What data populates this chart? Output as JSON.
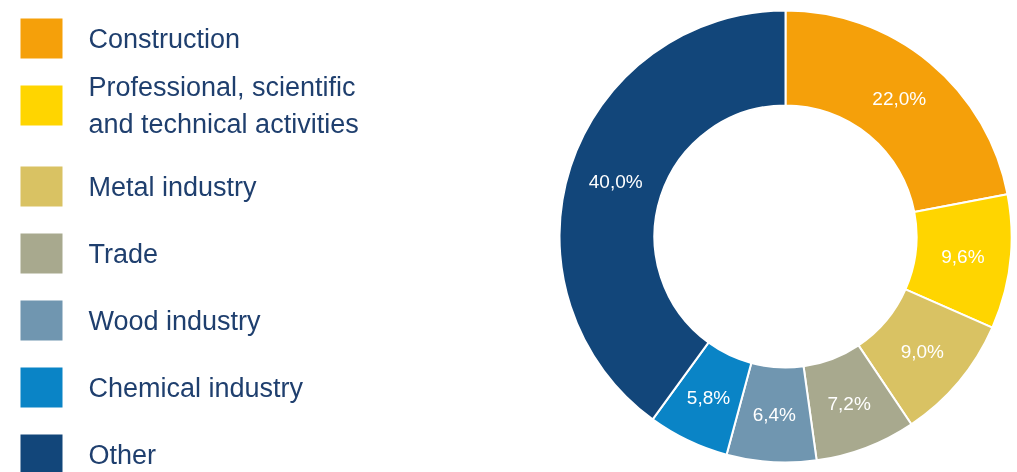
{
  "chart_data": {
    "type": "donut",
    "categories": [
      "Construction",
      "Professional, scientific and technical activities",
      "Metal industry",
      "Trade",
      "Wood industry",
      "Chemical industry",
      "Other"
    ],
    "values": [
      22.0,
      9.6,
      9.0,
      7.2,
      6.4,
      5.8,
      40.0
    ],
    "colors": [
      "#f5a00a",
      "#ffd500",
      "#d9c263",
      "#a8a98e",
      "#7096b0",
      "#0a84c6",
      "#12467a"
    ],
    "value_labels": [
      "22,0%",
      "9,6%",
      "9,0%",
      "7,2%",
      "6,4%",
      "5,8%",
      "40,0%"
    ],
    "legend": "left"
  }
}
